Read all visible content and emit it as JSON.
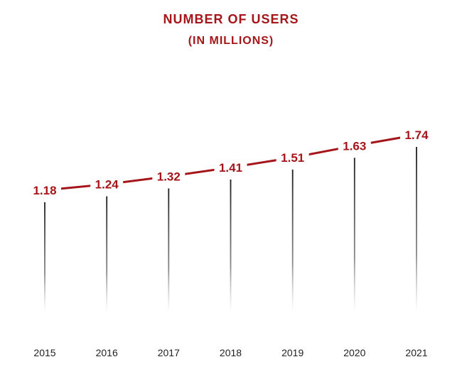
{
  "chart_data": {
    "type": "line",
    "title": "NUMBER OF USERS",
    "subtitle": "(IN MILLIONS)",
    "categories": [
      "2015",
      "2016",
      "2017",
      "2018",
      "2019",
      "2020",
      "2021"
    ],
    "values": [
      1.18,
      1.24,
      1.32,
      1.41,
      1.51,
      1.63,
      1.74
    ],
    "value_labels": [
      "1.18",
      "1.24",
      "1.32",
      "1.41",
      "1.51",
      "1.63",
      "1.74"
    ],
    "xlabel": "",
    "ylabel": "",
    "ylim": [
      0,
      1.9
    ],
    "grid": false,
    "legend": "none"
  },
  "colors": {
    "accent": "#a4161a",
    "stem": "#333333",
    "axis_text": "#222222"
  }
}
